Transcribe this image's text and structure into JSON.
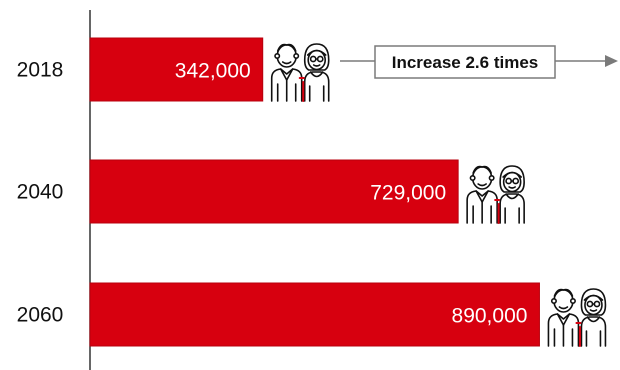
{
  "chart_data": {
    "type": "bar",
    "orientation": "horizontal",
    "categories": [
      "2018",
      "2040",
      "2060"
    ],
    "values": [
      342000,
      729000,
      890000
    ],
    "value_labels": [
      "342,000",
      "729,000",
      "890,000"
    ],
    "xlim": [
      0,
      1000000
    ],
    "annotation": "Increase 2.6 times",
    "grid": false,
    "legend": "none"
  },
  "colors": {
    "bar": "#d7000f",
    "bar_outline": "#b8000d",
    "axis": "#333333",
    "text": "#111111",
    "value_text": "#ffffff",
    "arrow": "#7a7a7a",
    "icon_stroke": "#111111",
    "icon_accent": "#d7000f"
  },
  "icons": [
    "elderly-couple-icon",
    "elderly-couple-icon",
    "elderly-couple-icon"
  ]
}
